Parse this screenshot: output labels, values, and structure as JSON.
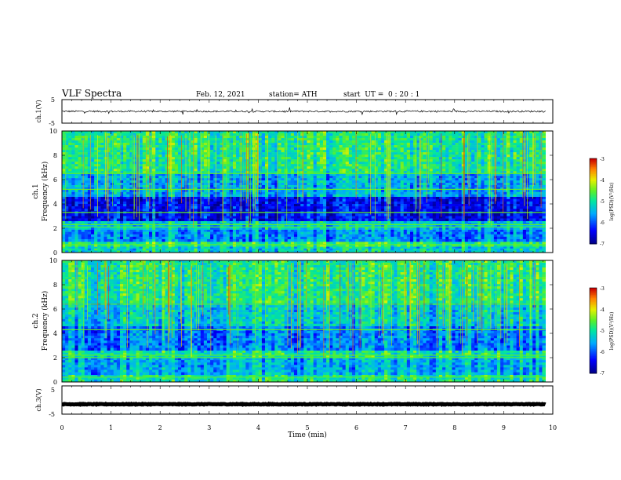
{
  "header": {
    "title": "VLF Spectra",
    "date": "Feb. 12, 2021",
    "station": "station= ATH",
    "start": "start  UT =  0 : 20 : 1"
  },
  "chart_data": [
    {
      "type": "line",
      "panel": "ch1-waveform",
      "ylabel": "ch.1(V)",
      "ylim": [
        -5,
        5
      ],
      "y_ticks": [
        "5",
        "-5"
      ],
      "xlim": [
        0,
        10
      ],
      "data_end": 9.85,
      "baseline": 0.0,
      "noise_amplitude": 0.35,
      "color": "#000000"
    },
    {
      "type": "heatmap",
      "panel": "ch1-spectrogram",
      "ylabel_line1": "ch.1",
      "ylabel_line2": "Frequency (kHz)",
      "ylim": [
        0,
        10
      ],
      "y_ticks": [
        0,
        2,
        4,
        6,
        8,
        10
      ],
      "xlim": [
        0,
        10
      ],
      "data_end": 9.85,
      "colorbar": {
        "label": "log(PSD)(V²/Hz)",
        "range": [
          -7,
          -3
        ],
        "ticks": [
          "-3",
          "-4",
          "-5",
          "-6",
          "-7"
        ]
      },
      "bands": [
        {
          "from": 0.0,
          "to": 0.5,
          "level": -5.2
        },
        {
          "from": 0.5,
          "to": 0.9,
          "level": -4.8
        },
        {
          "from": 0.9,
          "to": 1.9,
          "level": -5.7
        },
        {
          "from": 1.9,
          "to": 2.6,
          "level": -5.3
        },
        {
          "from": 2.6,
          "to": 4.6,
          "level": -6.4
        },
        {
          "from": 4.6,
          "to": 6.5,
          "level": -5.5
        },
        {
          "from": 6.5,
          "to": 10.0,
          "level": -4.9
        }
      ],
      "lines_khz": [
        0.65,
        2.1,
        2.3,
        6.5,
        5.2,
        3.3
      ]
    },
    {
      "type": "heatmap",
      "panel": "ch2-spectrogram",
      "ylabel_line1": "ch.2",
      "ylabel_line2": "Frequency (kHz)",
      "ylim": [
        0,
        10
      ],
      "y_ticks": [
        0,
        2,
        4,
        6,
        8,
        10
      ],
      "xlim": [
        0,
        10
      ],
      "data_end": 9.85,
      "colorbar": {
        "label": "log(PSD)(V²/Hz)",
        "range": [
          -7,
          -3
        ],
        "ticks": [
          "-3",
          "-4",
          "-5",
          "-6",
          "-7"
        ]
      },
      "bands": [
        {
          "from": 0.0,
          "to": 0.6,
          "level": -5.0
        },
        {
          "from": 0.6,
          "to": 2.0,
          "level": -5.5
        },
        {
          "from": 2.0,
          "to": 2.6,
          "level": -5.0
        },
        {
          "from": 2.6,
          "to": 4.6,
          "level": -5.8
        },
        {
          "from": 4.6,
          "to": 6.5,
          "level": -5.3
        },
        {
          "from": 6.5,
          "to": 10.0,
          "level": -4.9
        }
      ],
      "lines_khz": [
        2.0,
        2.2,
        0.4,
        6.4,
        4.3
      ]
    },
    {
      "type": "line",
      "panel": "ch3-waveform",
      "ylabel": "ch.3(V)",
      "ylim": [
        -5,
        5
      ],
      "y_ticks": [
        "5",
        "-5"
      ],
      "xlim": [
        0,
        10
      ],
      "data_end": 9.85,
      "baseline": -1.5,
      "noise_amplitude": 0.12,
      "color": "#000000",
      "xlabel": "Time (min)",
      "x_ticks": [
        "0",
        "1",
        "2",
        "3",
        "4",
        "5",
        "6",
        "7",
        "8",
        "9",
        "10"
      ]
    }
  ]
}
